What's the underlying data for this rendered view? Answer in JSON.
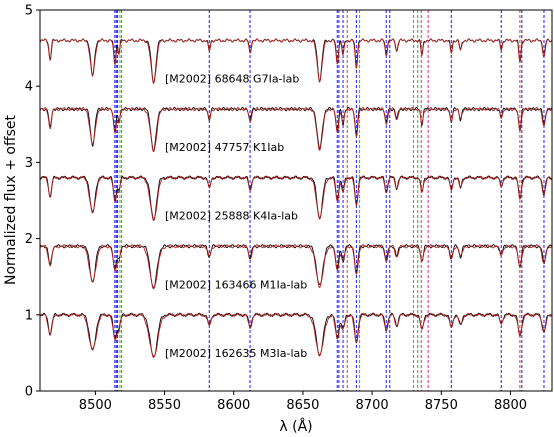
{
  "chart_data": {
    "type": "line",
    "xlabel": "λ (Å)",
    "ylabel": "Normalized flux + offset",
    "xlim": [
      8460,
      8830
    ],
    "ylim": [
      0,
      5
    ],
    "xticks": [
      8500,
      8550,
      8600,
      8650,
      8700,
      8750,
      8800
    ],
    "yticks": [
      0,
      1,
      2,
      3,
      4,
      5
    ],
    "grid": false,
    "colors": {
      "observed": "#000000",
      "model": "#b22222"
    },
    "spectra": [
      {
        "label": "[M2002] 68648 G7Ia-lab",
        "offset": 3.6
      },
      {
        "label": "[M2002] 47757 K1Iab",
        "offset": 2.7
      },
      {
        "label": "[M2002] 25888 K4Ia-lab",
        "offset": 1.8
      },
      {
        "label": "[M2002] 163466 M1Ia-lab",
        "offset": 0.9
      },
      {
        "label": "[M2002] 162635 M3Ia-lab",
        "offset": 0.0
      }
    ],
    "absorption_lines": [
      {
        "x": 8467.3,
        "depth": 0.45,
        "width": 0.9
      },
      {
        "x": 8498.0,
        "depth": 0.85,
        "width": 1.6
      },
      {
        "x": 8514.1,
        "depth": 0.55,
        "width": 0.9
      },
      {
        "x": 8517.0,
        "depth": 0.3,
        "width": 0.8
      },
      {
        "x": 8542.1,
        "depth": 1.0,
        "width": 1.9
      },
      {
        "x": 8582.3,
        "depth": 0.25,
        "width": 0.8
      },
      {
        "x": 8611.8,
        "depth": 0.3,
        "width": 0.8
      },
      {
        "x": 8662.1,
        "depth": 0.95,
        "width": 1.8
      },
      {
        "x": 8674.8,
        "depth": 0.55,
        "width": 0.9
      },
      {
        "x": 8679.0,
        "depth": 0.35,
        "width": 0.8
      },
      {
        "x": 8688.6,
        "depth": 0.65,
        "width": 0.9
      },
      {
        "x": 8710.2,
        "depth": 0.35,
        "width": 0.8
      },
      {
        "x": 8717.8,
        "depth": 0.25,
        "width": 0.8
      },
      {
        "x": 8736.0,
        "depth": 0.35,
        "width": 0.8
      },
      {
        "x": 8757.2,
        "depth": 0.3,
        "width": 0.8
      },
      {
        "x": 8763.9,
        "depth": 0.25,
        "width": 0.8
      },
      {
        "x": 8793.3,
        "depth": 0.2,
        "width": 0.8
      },
      {
        "x": 8806.8,
        "depth": 0.5,
        "width": 0.9
      },
      {
        "x": 8824.2,
        "depth": 0.4,
        "width": 0.9
      }
    ],
    "vertical_lines": [
      {
        "x": 8514.1,
        "color": "#0000ff"
      },
      {
        "x": 8515.1,
        "color": "#0000ff"
      },
      {
        "x": 8516.1,
        "color": "#0000ff"
      },
      {
        "x": 8517.8,
        "color": "#2ca02c"
      },
      {
        "x": 8519.0,
        "color": "#2ca02c"
      },
      {
        "x": 8582.3,
        "color": "#0000ff"
      },
      {
        "x": 8611.8,
        "color": "#0000ff"
      },
      {
        "x": 8674.8,
        "color": "#0000ff"
      },
      {
        "x": 8676.0,
        "color": "#0000ff"
      },
      {
        "x": 8679.0,
        "color": "#0000ff"
      },
      {
        "x": 8682.0,
        "color": "#d62728"
      },
      {
        "x": 8688.6,
        "color": "#0000ff"
      },
      {
        "x": 8691.0,
        "color": "#2ca02c"
      },
      {
        "x": 8710.2,
        "color": "#0000ff"
      },
      {
        "x": 8712.8,
        "color": "#0000ff"
      },
      {
        "x": 8730.0,
        "color": "#2ca02c"
      },
      {
        "x": 8733.0,
        "color": "#2ca02c"
      },
      {
        "x": 8735.5,
        "color": "#d62728"
      },
      {
        "x": 8740.5,
        "color": "#c71585"
      },
      {
        "x": 8757.2,
        "color": "#0000ff"
      },
      {
        "x": 8793.3,
        "color": "#0000ff"
      },
      {
        "x": 8806.8,
        "color": "#d62728"
      },
      {
        "x": 8808.2,
        "color": "#0000ff"
      },
      {
        "x": 8824.2,
        "color": "#0000ff"
      }
    ]
  }
}
